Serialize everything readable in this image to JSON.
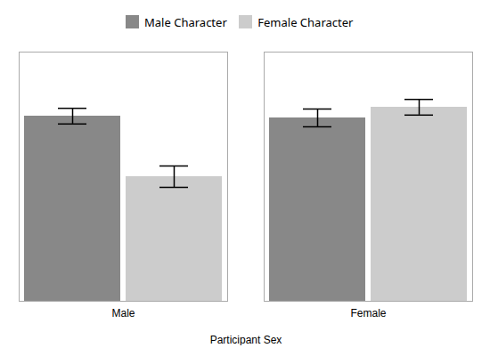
{
  "chart_data": {
    "type": "bar",
    "xlabel": "Participant Sex",
    "categories": [
      "Male",
      "Female"
    ],
    "series": [
      {
        "name": "Male Character",
        "color": "#888888",
        "values": [
          5.2,
          5.15
        ],
        "errors": [
          0.22,
          0.25
        ]
      },
      {
        "name": "Female Character",
        "color": "#cccccc",
        "values": [
          3.5,
          5.45
        ],
        "errors": [
          0.3,
          0.22
        ]
      }
    ],
    "ylim": [
      0,
      7.0
    ],
    "tick_labels": "x",
    "legend": "top"
  }
}
